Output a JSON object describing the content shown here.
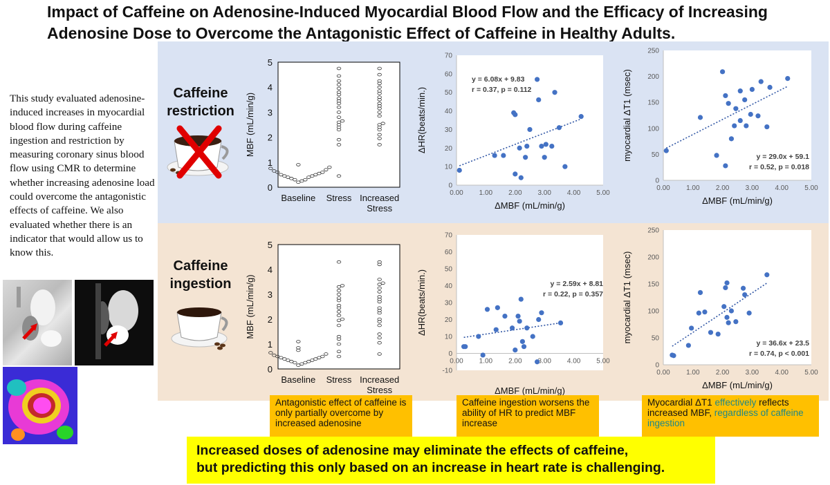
{
  "title": {
    "line1": "Impact of Caffeine on Adenosine-Induced Myocardial Blood Flow and the Efficacy of Increasing",
    "line2": "Adenosine Dose to Overcome the Antagonistic Effect of Caffeine in Healthy Adults."
  },
  "intro_text": "This study evaluated adenosine-induced increases in myocardial blood flow during caffeine ingestion and restriction by measuring coronary sinus blood flow using CMR to determine whether increasing adenosine load could overcome the antagonistic effects of caffeine. We also evaluated whether there is an indicator that would allow us to know this.",
  "rows": {
    "restriction": {
      "label_line1": "Caffeine",
      "label_line2": "restriction"
    },
    "ingestion": {
      "label_line1": "Caffeine",
      "label_line2": "ingestion"
    }
  },
  "callouts": {
    "c1": "Antagonistic effect of caffeine is only partially overcome by increased adenosine",
    "c2": "Caffeine ingestion worsens the ability of HR to predict MBF increase",
    "c3_part1": "Myocardial ΔT1 ",
    "c3_part2": "effectively",
    "c3_part3": " reflects increased MBF, ",
    "c3_part4": "regardless of caffeine ingestion"
  },
  "conclusion": {
    "line1": "Increased doses of adenosine may eliminate the effects of caffeine,",
    "line2": "but predicting this only based on an increase in heart rate is challenging."
  },
  "colors": {
    "panel_top": "#dae3f3",
    "panel_bottom": "#f4e4d3",
    "callout": "#ffc000",
    "conclusion": "#ffff00",
    "dot": "#4472c4",
    "highlight_text": "#1e8787"
  },
  "chart_data": [
    {
      "id": "mbf-restriction",
      "type": "scatter",
      "title": "",
      "ylabel": "MBF (mL/min/g)",
      "ylim": [
        0,
        5
      ],
      "yticks": [
        0,
        1,
        2,
        3,
        4,
        5
      ],
      "categories": [
        "Baseline",
        "Stress",
        "Increased Stress"
      ],
      "series": [
        {
          "name": "Baseline",
          "values": [
            0.2,
            0.25,
            0.3,
            0.3,
            0.35,
            0.4,
            0.4,
            0.45,
            0.45,
            0.5,
            0.5,
            0.55,
            0.6,
            0.6,
            0.65,
            0.7,
            0.75,
            0.8,
            0.9
          ]
        },
        {
          "name": "Stress",
          "values": [
            0.45,
            1.7,
            1.9,
            2.3,
            2.4,
            2.5,
            2.6,
            2.65,
            2.8,
            3.0,
            3.2,
            3.35,
            3.45,
            3.55,
            3.7,
            3.8,
            3.95,
            4.1,
            4.25,
            4.45,
            4.75
          ]
        },
        {
          "name": "Increased Stress",
          "values": [
            1.7,
            1.95,
            2.1,
            2.3,
            2.4,
            2.5,
            2.55,
            2.85,
            3.0,
            3.15,
            3.25,
            3.35,
            3.5,
            3.6,
            3.75,
            3.85,
            4.0,
            4.15,
            4.25,
            4.5,
            4.75
          ]
        }
      ]
    },
    {
      "id": "hr-restriction",
      "type": "scatter",
      "xlabel": "ΔMBF (mL/min/g)",
      "ylabel": "ΔHR(beats/min.)",
      "xlim": [
        0,
        5
      ],
      "ylim": [
        0,
        70
      ],
      "xticks": [
        "0.00",
        "1.00",
        "2.00",
        "3.00",
        "4.00",
        "5.00"
      ],
      "yticks": [
        0,
        10,
        20,
        30,
        40,
        50,
        60,
        70
      ],
      "points": [
        [
          0.1,
          8
        ],
        [
          1.3,
          16
        ],
        [
          1.6,
          16
        ],
        [
          1.95,
          39
        ],
        [
          2.0,
          38
        ],
        [
          2.0,
          6
        ],
        [
          2.15,
          20
        ],
        [
          2.2,
          4
        ],
        [
          2.35,
          15
        ],
        [
          2.4,
          21
        ],
        [
          2.5,
          30
        ],
        [
          2.75,
          57
        ],
        [
          2.8,
          46
        ],
        [
          2.9,
          21
        ],
        [
          3.0,
          15
        ],
        [
          3.05,
          22
        ],
        [
          3.25,
          21
        ],
        [
          3.35,
          50
        ],
        [
          3.5,
          31
        ],
        [
          3.7,
          10
        ],
        [
          4.25,
          37
        ]
      ],
      "trendline": {
        "slope": 6.08,
        "intercept": 9.83,
        "x_range": [
          0.1,
          4.25
        ]
      },
      "annotation_line1": "y = 6.08x + 9.83",
      "annotation_line2": "r = 0.37, p = 0.112"
    },
    {
      "id": "t1-restriction",
      "type": "scatter",
      "xlabel": "ΔMBF (mL/min/g)",
      "ylabel": "myocardial ΔT1 (msec)",
      "xlim": [
        0,
        5
      ],
      "ylim": [
        0,
        250
      ],
      "xticks": [
        "0.00",
        "1.00",
        "2.00",
        "3.00",
        "4.00",
        "5.00"
      ],
      "yticks": [
        0,
        50,
        100,
        150,
        200,
        250
      ],
      "points": [
        [
          0.1,
          57
        ],
        [
          1.25,
          121
        ],
        [
          1.8,
          48
        ],
        [
          2.0,
          209
        ],
        [
          2.1,
          163
        ],
        [
          2.1,
          28
        ],
        [
          2.2,
          148
        ],
        [
          2.3,
          80
        ],
        [
          2.4,
          105
        ],
        [
          2.45,
          138
        ],
        [
          2.6,
          172
        ],
        [
          2.6,
          115
        ],
        [
          2.75,
          155
        ],
        [
          2.8,
          105
        ],
        [
          2.95,
          127
        ],
        [
          3.0,
          175
        ],
        [
          3.2,
          124
        ],
        [
          3.3,
          190
        ],
        [
          3.5,
          103
        ],
        [
          3.6,
          179
        ],
        [
          4.2,
          196
        ]
      ],
      "trendline": {
        "slope": 29.0,
        "intercept": 59.1,
        "x_range": [
          0.1,
          4.2
        ]
      },
      "annotation_line1": "y = 29.0x + 59.1",
      "annotation_line2": "r = 0.52, p = 0.018"
    },
    {
      "id": "mbf-ingestion",
      "type": "scatter",
      "ylabel": "MBF (mL/min/g)",
      "ylim": [
        0,
        5
      ],
      "yticks": [
        0,
        1,
        2,
        3,
        4,
        5
      ],
      "categories": [
        "Baseline",
        "Stress",
        "Increased Stress"
      ],
      "series": [
        {
          "name": "Baseline",
          "values": [
            0.15,
            0.2,
            0.25,
            0.25,
            0.3,
            0.3,
            0.35,
            0.35,
            0.4,
            0.4,
            0.45,
            0.45,
            0.5,
            0.5,
            0.55,
            0.6,
            0.65,
            0.75,
            0.85,
            1.1
          ]
        },
        {
          "name": "Stress",
          "values": [
            0.5,
            0.7,
            1.0,
            1.2,
            1.3,
            1.75,
            1.95,
            2.0,
            2.15,
            2.3,
            2.45,
            2.55,
            2.75,
            2.85,
            3.0,
            3.15,
            3.3,
            3.35,
            4.3
          ]
        },
        {
          "name": "Increased Stress",
          "values": [
            0.6,
            1.05,
            1.25,
            1.4,
            1.75,
            1.9,
            2.0,
            2.25,
            2.35,
            2.45,
            2.7,
            2.8,
            2.9,
            3.1,
            3.25,
            3.4,
            3.45,
            3.6,
            4.2,
            4.3
          ]
        }
      ]
    },
    {
      "id": "hr-ingestion",
      "type": "scatter",
      "xlabel": "ΔMBF (mL/min/g)",
      "ylabel": "ΔHR(beats/min.)",
      "xlim": [
        0,
        5
      ],
      "ylim": [
        -10,
        70
      ],
      "xticks": [
        "0.00",
        "1.00",
        "2.00",
        "3.00",
        "4.00",
        "5.00"
      ],
      "yticks": [
        -10,
        0,
        10,
        20,
        30,
        40,
        50,
        60,
        70
      ],
      "points": [
        [
          0.25,
          4
        ],
        [
          0.3,
          4
        ],
        [
          0.75,
          10
        ],
        [
          0.9,
          -1
        ],
        [
          1.05,
          26
        ],
        [
          1.35,
          14
        ],
        [
          1.4,
          27
        ],
        [
          1.65,
          22
        ],
        [
          1.9,
          15
        ],
        [
          2.0,
          2
        ],
        [
          2.1,
          22
        ],
        [
          2.15,
          19
        ],
        [
          2.2,
          32
        ],
        [
          2.25,
          7
        ],
        [
          2.3,
          4
        ],
        [
          2.4,
          15
        ],
        [
          2.6,
          10
        ],
        [
          2.75,
          -5
        ],
        [
          2.8,
          20
        ],
        [
          2.9,
          24
        ],
        [
          3.55,
          18
        ]
      ],
      "trendline": {
        "slope": 2.59,
        "intercept": 8.81,
        "x_range": [
          0.25,
          3.55
        ]
      },
      "annotation_line1": "y = 2.59x + 8.81",
      "annotation_line2": "r = 0.22, p = 0.357"
    },
    {
      "id": "t1-ingestion",
      "type": "scatter",
      "xlabel": "ΔMBF (mL/min/g)",
      "ylabel": "myocardial ΔT1 (msec)",
      "xlim": [
        0,
        5
      ],
      "ylim": [
        0,
        250
      ],
      "xticks": [
        "0.00",
        "1.00",
        "2.00",
        "3.00",
        "4.00",
        "5.00"
      ],
      "yticks": [
        0,
        50,
        100,
        150,
        200,
        250
      ],
      "points": [
        [
          0.3,
          18
        ],
        [
          0.35,
          17
        ],
        [
          0.85,
          36
        ],
        [
          0.95,
          68
        ],
        [
          1.2,
          96
        ],
        [
          1.25,
          134
        ],
        [
          1.4,
          98
        ],
        [
          1.6,
          60
        ],
        [
          1.85,
          57
        ],
        [
          2.05,
          108
        ],
        [
          2.1,
          143
        ],
        [
          2.15,
          152
        ],
        [
          2.15,
          88
        ],
        [
          2.2,
          78
        ],
        [
          2.3,
          100
        ],
        [
          2.45,
          80
        ],
        [
          2.7,
          142
        ],
        [
          2.75,
          130
        ],
        [
          2.9,
          96
        ],
        [
          3.5,
          167
        ]
      ],
      "trendline": {
        "slope": 36.6,
        "intercept": 23.5,
        "x_range": [
          0.3,
          3.5
        ]
      },
      "annotation_line1": "y = 36.6x + 23.5",
      "annotation_line2": "r = 0.74, p < 0.001"
    }
  ]
}
